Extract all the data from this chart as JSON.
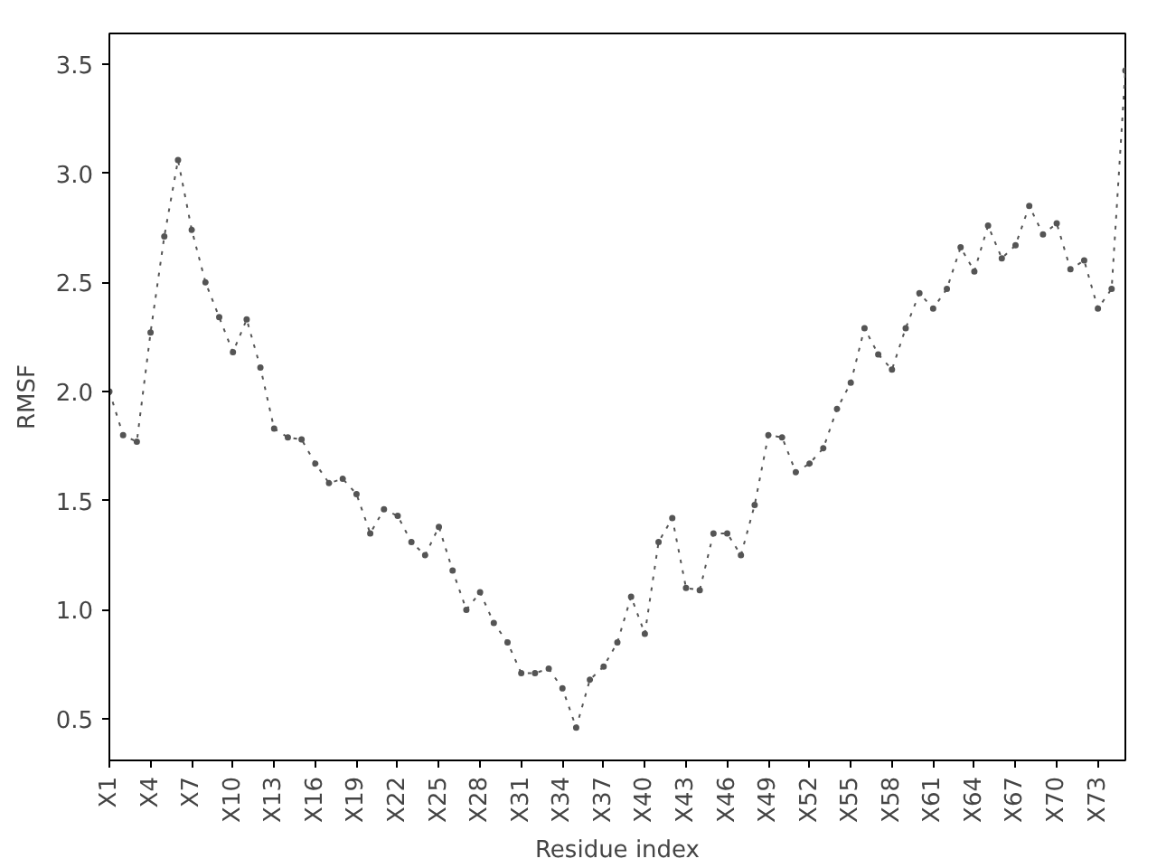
{
  "chart_data": {
    "type": "line",
    "xlabel": "Residue index",
    "ylabel": "RMSF",
    "categories": [
      "X1",
      null,
      null,
      "X4",
      null,
      null,
      "X7",
      null,
      null,
      "X10",
      null,
      null,
      "X13",
      null,
      null,
      "X16",
      null,
      null,
      "X19",
      null,
      null,
      "X22",
      null,
      null,
      "X25",
      null,
      null,
      "X28",
      null,
      null,
      "X31",
      null,
      null,
      "X34",
      null,
      null,
      "X37",
      null,
      null,
      "X40",
      null,
      null,
      "X43",
      null,
      null,
      "X46",
      null,
      null,
      "X49",
      null,
      null,
      "X52",
      null,
      null,
      "X55",
      null,
      null,
      "X58",
      null,
      null,
      "X61",
      null,
      null,
      "X64",
      null,
      null,
      "X67",
      null,
      null,
      "X70",
      null,
      null,
      "X73",
      null,
      null
    ],
    "series": [
      {
        "color": "#555555",
        "values": [
          2.0,
          1.8,
          1.77,
          2.27,
          2.71,
          3.06,
          2.74,
          2.5,
          2.34,
          2.18,
          2.33,
          2.11,
          1.83,
          1.79,
          1.78,
          1.67,
          1.58,
          1.6,
          1.53,
          1.35,
          1.46,
          1.43,
          1.31,
          1.25,
          1.38,
          1.18,
          1.0,
          1.08,
          0.94,
          0.85,
          0.71,
          0.71,
          0.73,
          0.64,
          0.46,
          0.68,
          0.74,
          0.85,
          1.06,
          0.89,
          1.31,
          1.42,
          1.1,
          1.09,
          1.35,
          1.35,
          1.25,
          1.48,
          1.8,
          1.79,
          1.63,
          1.67,
          1.74,
          1.92,
          2.04,
          2.29,
          2.17,
          2.1,
          2.29,
          2.45,
          2.38,
          2.47,
          2.66,
          2.55,
          2.76,
          2.61,
          2.67,
          2.85,
          2.72,
          2.77,
          2.56,
          2.6,
          2.38,
          2.47,
          3.47
        ]
      }
    ],
    "ylim": [
      0.31,
      3.64
    ],
    "yticks": [
      0.5,
      {
        "value": 1,
        "label": "1.0"
      },
      1.5,
      {
        "value": 2,
        "label": "2.0"
      },
      2.5,
      {
        "value": 3,
        "label": "3.0"
      },
      3.5
    ],
    "marker": "circle",
    "line_style": "dotted",
    "grid": false
  }
}
